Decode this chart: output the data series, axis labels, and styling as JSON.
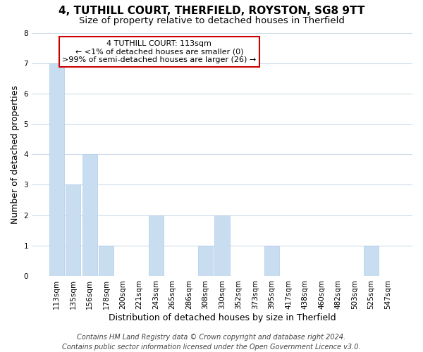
{
  "title": "4, TUTHILL COURT, THERFIELD, ROYSTON, SG8 9TT",
  "subtitle": "Size of property relative to detached houses in Therfield",
  "xlabel": "Distribution of detached houses by size in Therfield",
  "ylabel": "Number of detached properties",
  "bar_labels": [
    "113sqm",
    "135sqm",
    "156sqm",
    "178sqm",
    "200sqm",
    "221sqm",
    "243sqm",
    "265sqm",
    "286sqm",
    "308sqm",
    "330sqm",
    "352sqm",
    "373sqm",
    "395sqm",
    "417sqm",
    "438sqm",
    "460sqm",
    "482sqm",
    "503sqm",
    "525sqm",
    "547sqm"
  ],
  "bar_values": [
    7,
    3,
    4,
    1,
    0,
    0,
    2,
    0,
    0,
    1,
    2,
    0,
    0,
    1,
    0,
    0,
    0,
    0,
    0,
    1,
    0
  ],
  "bar_color": "#c8ddf0",
  "bar_edge_color": "#b0cceb",
  "ylim": [
    0,
    8
  ],
  "yticks": [
    0,
    1,
    2,
    3,
    4,
    5,
    6,
    7,
    8
  ],
  "annotation_line1": "4 TUTHILL COURT: 113sqm",
  "annotation_line2": "← <1% of detached houses are smaller (0)",
  "annotation_line3": ">99% of semi-detached houses are larger (26) →",
  "annotation_box_color": "#ffffff",
  "annotation_box_edge": "#cc0000",
  "footer_line1": "Contains HM Land Registry data © Crown copyright and database right 2024.",
  "footer_line2": "Contains public sector information licensed under the Open Government Licence v3.0.",
  "background_color": "#ffffff",
  "grid_color": "#d0dce8",
  "title_fontsize": 11,
  "subtitle_fontsize": 9.5,
  "axis_label_fontsize": 9,
  "tick_fontsize": 7.5,
  "annotation_fontsize": 8,
  "footer_fontsize": 7
}
